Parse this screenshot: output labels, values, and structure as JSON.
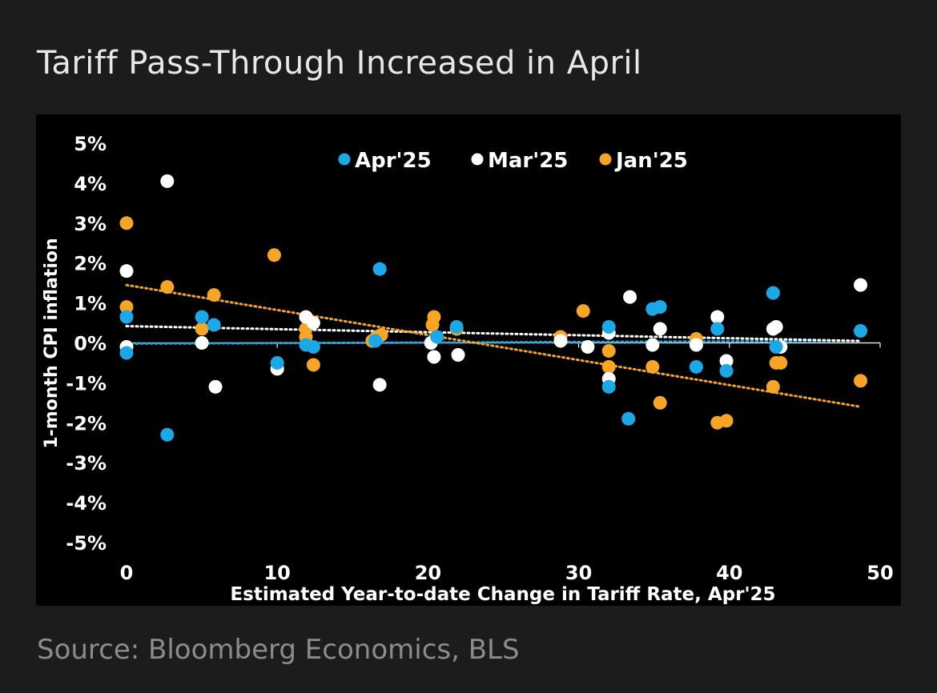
{
  "header": {
    "title": "Tariff Pass-Through Increased in April"
  },
  "footer": {
    "source": "Source: Bloomberg Economics, BLS"
  },
  "colors": {
    "apr": "#1ba8e6",
    "mar": "#ffffff",
    "jan": "#f7a525",
    "background": "#000000",
    "page": "#1c1c1c"
  },
  "chart_data": {
    "type": "scatter",
    "title": "Tariff Pass-Through Increased in April",
    "xlabel": "Estimated Year-to-date Change in Tariff Rate, Apr'25",
    "ylabel": "1-month CPI inflation",
    "xlim": [
      0,
      50
    ],
    "ylim": [
      -5,
      5
    ],
    "x_ticks": [
      0,
      10,
      20,
      30,
      40,
      50
    ],
    "y_ticks": [
      5,
      4,
      3,
      2,
      1,
      0,
      -1,
      -2,
      -3,
      -4,
      -5
    ],
    "y_tick_labels": [
      "5%",
      "4%",
      "3%",
      "2%",
      "1%",
      "0%",
      "-1%",
      "-2%",
      "-3%",
      "-4%",
      "-5%"
    ],
    "x_tick_labels": [
      "0",
      "10",
      "20",
      "30",
      "40",
      "50"
    ],
    "legend_position": "top-center",
    "series": [
      {
        "name": "Apr'25",
        "key": "apr",
        "color": "#1ba8e6",
        "points": [
          [
            0,
            0.65
          ],
          [
            0,
            -0.25
          ],
          [
            2.7,
            -2.3
          ],
          [
            5,
            0.65
          ],
          [
            5.8,
            0.45
          ],
          [
            10,
            -0.5
          ],
          [
            11.9,
            -0.05
          ],
          [
            12.4,
            -0.1
          ],
          [
            16.5,
            0.05
          ],
          [
            16.8,
            1.85
          ],
          [
            20.6,
            0.15
          ],
          [
            21.9,
            0.4
          ],
          [
            32,
            0.4
          ],
          [
            32,
            -1.1
          ],
          [
            33.3,
            -1.9
          ],
          [
            34.9,
            0.85
          ],
          [
            35.4,
            0.9
          ],
          [
            37.8,
            -0.6
          ],
          [
            39.2,
            0.35
          ],
          [
            39.8,
            -0.7
          ],
          [
            42.9,
            1.25
          ],
          [
            43.1,
            -0.1
          ],
          [
            48.7,
            0.3
          ]
        ],
        "trend": [
          [
            0,
            -0.02
          ],
          [
            48.7,
            0.05
          ]
        ]
      },
      {
        "name": "Mar'25",
        "key": "mar",
        "color": "#ffffff",
        "points": [
          [
            0,
            1.8
          ],
          [
            0,
            -0.1
          ],
          [
            2.7,
            4.05
          ],
          [
            5,
            0
          ],
          [
            5.9,
            -1.1
          ],
          [
            10,
            -0.65
          ],
          [
            11.9,
            0.65
          ],
          [
            12.4,
            0.5
          ],
          [
            16.8,
            -1.05
          ],
          [
            20.2,
            0
          ],
          [
            20.4,
            -0.35
          ],
          [
            22,
            -0.3
          ],
          [
            28.8,
            0.05
          ],
          [
            30.6,
            -0.1
          ],
          [
            32,
            0.25
          ],
          [
            32,
            -0.9
          ],
          [
            33.4,
            1.15
          ],
          [
            34.9,
            -0.05
          ],
          [
            35.4,
            0.35
          ],
          [
            37.8,
            -0.05
          ],
          [
            39.2,
            0.65
          ],
          [
            39.8,
            -0.45
          ],
          [
            42.9,
            0.35
          ],
          [
            43.1,
            0.4
          ],
          [
            43.4,
            -0.1
          ],
          [
            48.7,
            1.45
          ]
        ],
        "trend": [
          [
            0,
            0.42
          ],
          [
            48.7,
            0.05
          ]
        ]
      },
      {
        "name": "Jan'25",
        "key": "jan",
        "color": "#f7a525",
        "points": [
          [
            0,
            3.0
          ],
          [
            0,
            0.9
          ],
          [
            2.7,
            1.4
          ],
          [
            5,
            0.35
          ],
          [
            5.8,
            1.2
          ],
          [
            9.8,
            2.2
          ],
          [
            11.9,
            0.35
          ],
          [
            11.9,
            0.15
          ],
          [
            12.4,
            -0.55
          ],
          [
            16.3,
            0.05
          ],
          [
            16.6,
            0.15
          ],
          [
            16.9,
            0.2
          ],
          [
            20.3,
            0.45
          ],
          [
            20.4,
            0.65
          ],
          [
            21.9,
            0.35
          ],
          [
            28.8,
            0.15
          ],
          [
            30.3,
            0.8
          ],
          [
            32,
            -0.2
          ],
          [
            32,
            -0.6
          ],
          [
            34.9,
            -0.6
          ],
          [
            35.4,
            -1.5
          ],
          [
            37.8,
            0.1
          ],
          [
            39.2,
            -2
          ],
          [
            39.8,
            -1.95
          ],
          [
            42.9,
            -1.1
          ],
          [
            43.1,
            -0.5
          ],
          [
            43.4,
            -0.5
          ],
          [
            48.7,
            -0.95
          ]
        ],
        "trend": [
          [
            0,
            1.45
          ],
          [
            48.7,
            -1.6
          ]
        ]
      }
    ]
  }
}
